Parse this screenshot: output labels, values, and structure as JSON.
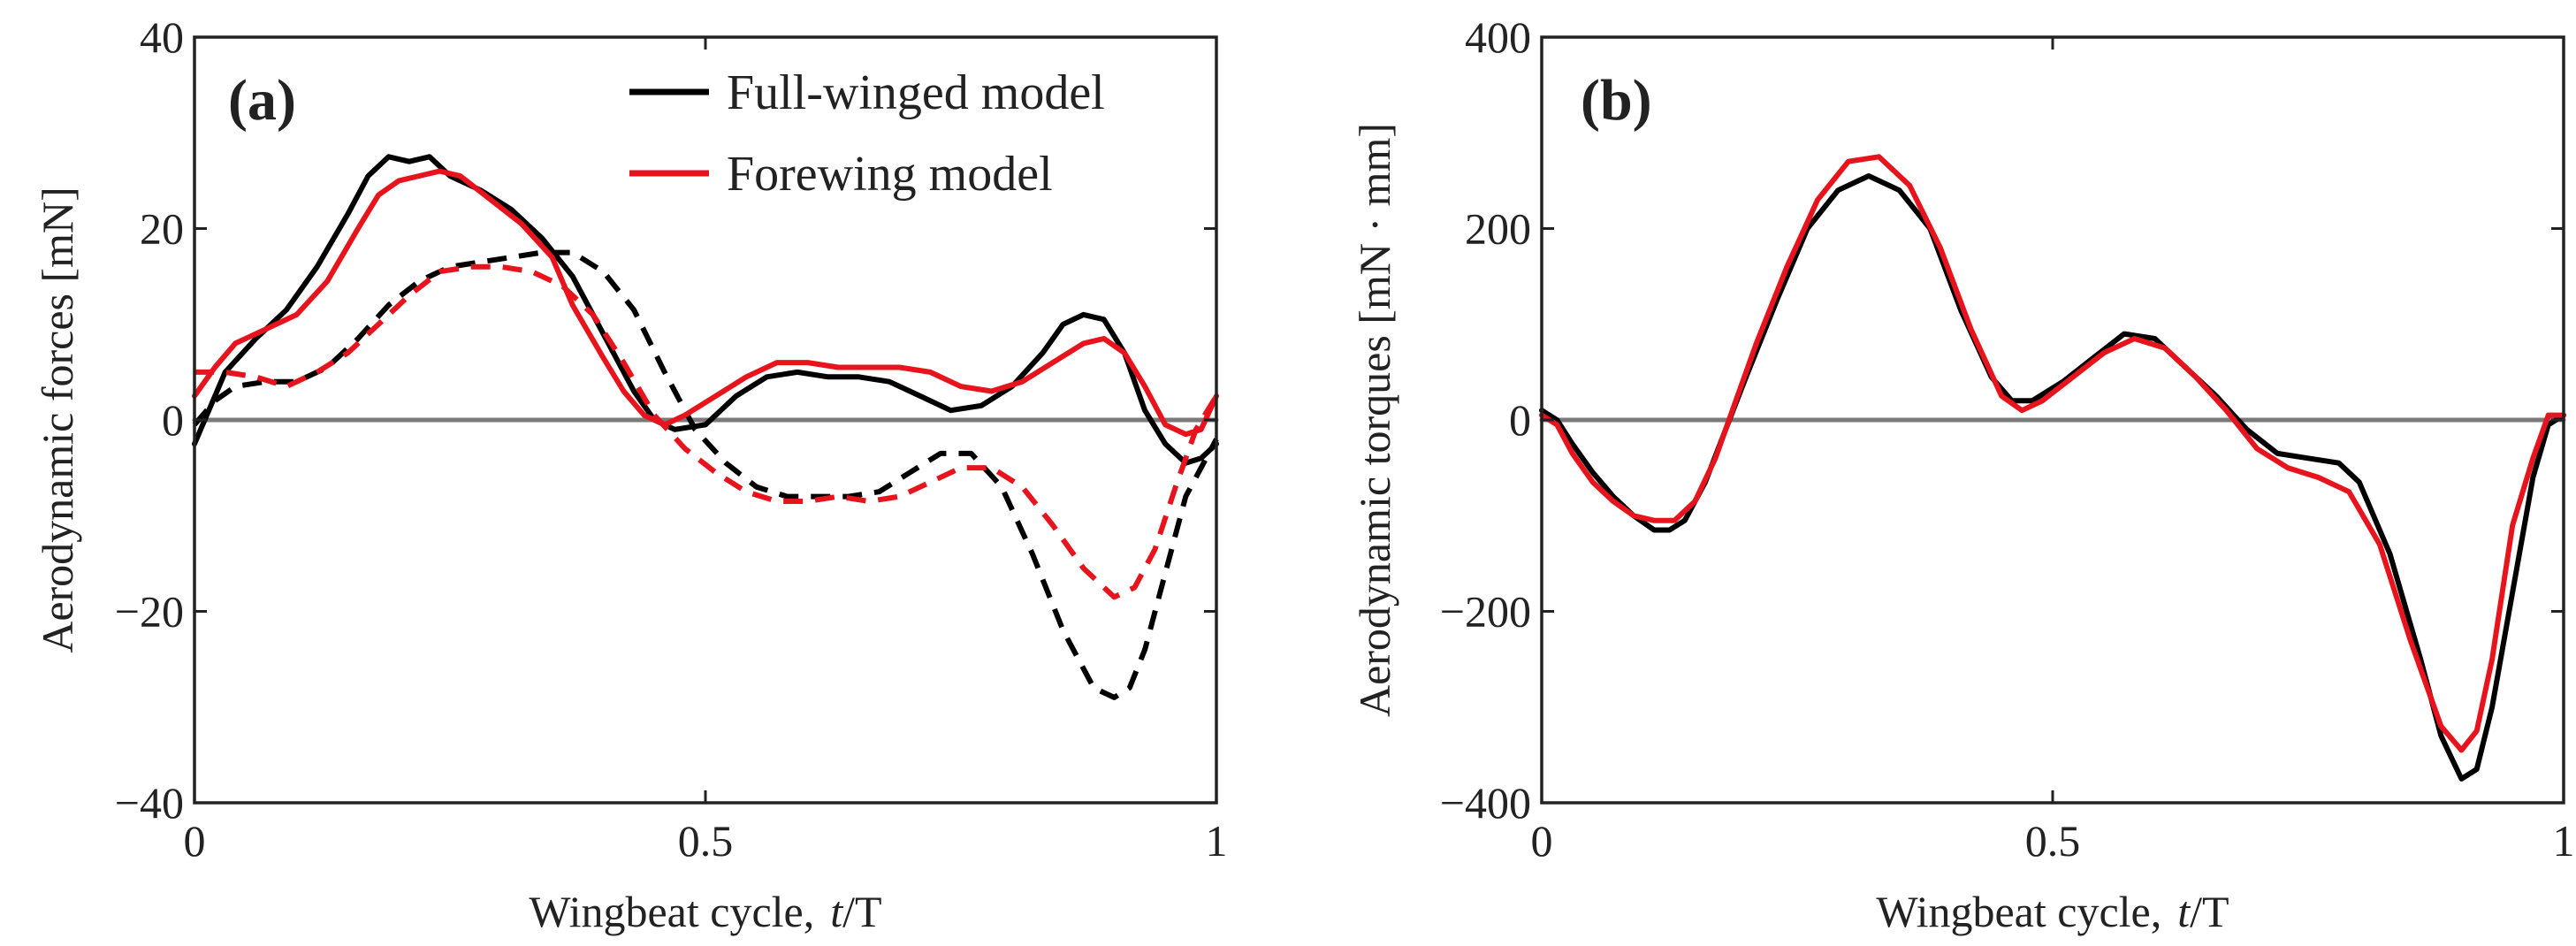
{
  "chart_data": [
    {
      "type": "line",
      "panel": "(a)",
      "xlabel_prefix": "Wingbeat cycle,",
      "xlabel_var": "t",
      "xlabel_suffix": "/T",
      "ylabel": "Aerodynamic forces [mN]",
      "xlim": [
        0,
        1
      ],
      "ylim": [
        -40,
        40
      ],
      "xticks": [
        0,
        0.5,
        1
      ],
      "xtick_labels": [
        "0",
        "0.5",
        "1"
      ],
      "yticks": [
        -40,
        -20,
        0,
        20,
        40
      ],
      "ytick_labels": [
        "−40",
        "−20",
        "0",
        "20",
        "40"
      ],
      "legend": {
        "position": "top-right",
        "entries": [
          {
            "label": "Full-winged model",
            "color": "#000000"
          },
          {
            "label": "Forewing model",
            "color": "#e8141d"
          }
        ]
      },
      "series": [
        {
          "name": "Full-winged model (solid)",
          "color": "#000000",
          "style": "solid",
          "x": [
            0,
            0.01,
            0.03,
            0.06,
            0.09,
            0.12,
            0.15,
            0.17,
            0.19,
            0.21,
            0.23,
            0.25,
            0.28,
            0.31,
            0.34,
            0.37,
            0.4,
            0.43,
            0.45,
            0.47,
            0.5,
            0.53,
            0.56,
            0.59,
            0.62,
            0.65,
            0.68,
            0.71,
            0.74,
            0.77,
            0.8,
            0.83,
            0.85,
            0.87,
            0.89,
            0.91,
            0.93,
            0.95,
            0.97,
            0.985,
            1.0
          ],
          "values": [
            -2.5,
            0,
            5,
            8.5,
            11.5,
            16,
            21.5,
            25.5,
            27.5,
            27,
            27.5,
            25.5,
            24,
            22,
            19,
            15,
            9,
            3,
            0,
            -1,
            -0.5,
            2.5,
            4.5,
            5,
            4.5,
            4.5,
            4,
            2.5,
            1,
            1.5,
            3.5,
            7,
            10,
            11,
            10.5,
            7,
            1,
            -2.5,
            -4.5,
            -4,
            -2.5
          ]
        },
        {
          "name": "Full-winged model (dashed)",
          "color": "#000000",
          "style": "dashed",
          "x": [
            0,
            0.02,
            0.04,
            0.07,
            0.1,
            0.13,
            0.16,
            0.19,
            0.22,
            0.25,
            0.28,
            0.31,
            0.34,
            0.37,
            0.4,
            0.43,
            0.46,
            0.49,
            0.52,
            0.55,
            0.58,
            0.61,
            0.64,
            0.67,
            0.7,
            0.73,
            0.76,
            0.79,
            0.82,
            0.85,
            0.88,
            0.9,
            0.915,
            0.93,
            0.95,
            0.97,
            1.0
          ],
          "values": [
            -0.5,
            2,
            3.5,
            4,
            4,
            5.5,
            8.5,
            12,
            14.5,
            16,
            16.5,
            17,
            17.5,
            17.5,
            15.5,
            11.5,
            5,
            -1,
            -4.5,
            -7,
            -8,
            -8,
            -8,
            -7.5,
            -5.5,
            -3.5,
            -3.5,
            -7,
            -14,
            -22,
            -28,
            -29,
            -28,
            -24,
            -16,
            -8,
            -2
          ]
        },
        {
          "name": "Forewing model (solid)",
          "color": "#e8141d",
          "style": "solid",
          "x": [
            0,
            0.02,
            0.04,
            0.07,
            0.1,
            0.13,
            0.16,
            0.18,
            0.2,
            0.22,
            0.24,
            0.26,
            0.29,
            0.32,
            0.35,
            0.37,
            0.4,
            0.42,
            0.44,
            0.46,
            0.48,
            0.51,
            0.54,
            0.57,
            0.6,
            0.63,
            0.66,
            0.69,
            0.72,
            0.75,
            0.78,
            0.81,
            0.84,
            0.87,
            0.89,
            0.91,
            0.93,
            0.95,
            0.97,
            0.985,
            1.0
          ],
          "values": [
            2.5,
            5.5,
            8,
            9.5,
            11,
            14.5,
            20,
            23.5,
            25,
            25.5,
            26,
            25.5,
            23,
            20.5,
            17,
            12,
            6.5,
            3,
            0.5,
            -0.5,
            0.5,
            2.5,
            4.5,
            6,
            6,
            5.5,
            5.5,
            5.5,
            5,
            3.5,
            3,
            4,
            6,
            8,
            8.5,
            7,
            3.5,
            -0.5,
            -1.5,
            -1,
            2.5
          ]
        },
        {
          "name": "Forewing model (dashed)",
          "color": "#e8141d",
          "style": "dashed",
          "x": [
            0,
            0.03,
            0.06,
            0.09,
            0.12,
            0.15,
            0.18,
            0.21,
            0.24,
            0.27,
            0.3,
            0.33,
            0.36,
            0.39,
            0.42,
            0.45,
            0.48,
            0.51,
            0.54,
            0.57,
            0.6,
            0.63,
            0.66,
            0.69,
            0.72,
            0.75,
            0.78,
            0.81,
            0.84,
            0.87,
            0.9,
            0.92,
            0.94,
            0.96,
            0.98,
            1.0
          ],
          "values": [
            5,
            5,
            4.5,
            3.5,
            5,
            7,
            10,
            13,
            15.5,
            16,
            16,
            15.5,
            14,
            11,
            6,
            0.5,
            -3,
            -5.5,
            -7.5,
            -8.5,
            -8.5,
            -8,
            -8.5,
            -8,
            -6.5,
            -5,
            -5,
            -7,
            -11,
            -15.5,
            -18.5,
            -17.5,
            -13.5,
            -7,
            -1,
            2.5
          ]
        },
        {
          "name": "zero line",
          "color": "#7a7a7a",
          "style": "baseline",
          "x": [
            0,
            1
          ],
          "values": [
            0,
            0
          ]
        }
      ]
    },
    {
      "type": "line",
      "panel": "(b)",
      "xlabel_prefix": "Wingbeat cycle,",
      "xlabel_var": "t",
      "xlabel_suffix": "/T",
      "ylabel": "Aerodynamic torques [mN · mm]",
      "xlim": [
        0,
        1
      ],
      "ylim": [
        -400,
        400
      ],
      "xticks": [
        0,
        0.5,
        1
      ],
      "xtick_labels": [
        "0",
        "0.5",
        "1"
      ],
      "yticks": [
        -400,
        -200,
        0,
        200,
        400
      ],
      "ytick_labels": [
        "−400",
        "−200",
        "0",
        "200",
        "400"
      ],
      "series": [
        {
          "name": "Full-winged model",
          "color": "#000000",
          "style": "solid",
          "x": [
            0,
            0.015,
            0.03,
            0.05,
            0.07,
            0.09,
            0.11,
            0.125,
            0.14,
            0.16,
            0.18,
            0.2,
            0.23,
            0.26,
            0.29,
            0.32,
            0.35,
            0.38,
            0.41,
            0.44,
            0.46,
            0.48,
            0.51,
            0.54,
            0.57,
            0.6,
            0.63,
            0.66,
            0.69,
            0.72,
            0.75,
            0.78,
            0.8,
            0.83,
            0.86,
            0.88,
            0.9,
            0.915,
            0.93,
            0.95,
            0.97,
            0.985,
            1.0
          ],
          "values": [
            10,
            0,
            -25,
            -55,
            -80,
            -100,
            -115,
            -115,
            -105,
            -65,
            -10,
            45,
            125,
            200,
            240,
            255,
            240,
            200,
            115,
            45,
            20,
            20,
            40,
            65,
            90,
            85,
            55,
            25,
            -10,
            -35,
            -40,
            -45,
            -65,
            -140,
            -250,
            -330,
            -375,
            -365,
            -300,
            -180,
            -60,
            -5,
            5
          ]
        },
        {
          "name": "Forewing model",
          "color": "#e8141d",
          "style": "solid",
          "x": [
            0,
            0.015,
            0.03,
            0.05,
            0.07,
            0.09,
            0.11,
            0.13,
            0.15,
            0.17,
            0.19,
            0.21,
            0.24,
            0.27,
            0.3,
            0.33,
            0.36,
            0.39,
            0.42,
            0.45,
            0.47,
            0.49,
            0.52,
            0.55,
            0.58,
            0.61,
            0.64,
            0.67,
            0.7,
            0.73,
            0.76,
            0.79,
            0.82,
            0.85,
            0.88,
            0.9,
            0.915,
            0.93,
            0.95,
            0.97,
            0.985,
            1.0
          ],
          "values": [
            5,
            -5,
            -35,
            -65,
            -85,
            -100,
            -105,
            -105,
            -85,
            -40,
            20,
            80,
            160,
            230,
            270,
            275,
            245,
            180,
            95,
            25,
            10,
            20,
            45,
            70,
            85,
            75,
            45,
            10,
            -30,
            -50,
            -60,
            -75,
            -130,
            -230,
            -320,
            -345,
            -325,
            -250,
            -110,
            -40,
            5,
            5
          ]
        },
        {
          "name": "zero line",
          "color": "#7a7a7a",
          "style": "baseline",
          "x": [
            0,
            1
          ],
          "values": [
            0,
            0
          ]
        }
      ]
    }
  ]
}
